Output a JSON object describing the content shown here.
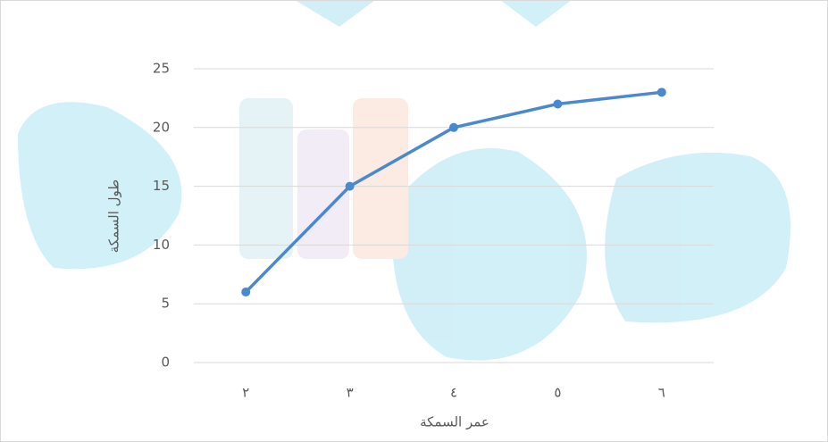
{
  "chart_data": {
    "type": "line",
    "x_label": "عمر السمكة",
    "y_label": "طول السمكة",
    "categories": [
      "٢",
      "٣",
      "٤",
      "٥",
      "٦"
    ],
    "values": [
      6,
      15,
      20,
      22,
      23
    ],
    "color": "#4a89d0",
    "ylim": [
      0,
      25
    ],
    "yticks": [
      0,
      5,
      10,
      15,
      20,
      25
    ],
    "grid": true
  }
}
